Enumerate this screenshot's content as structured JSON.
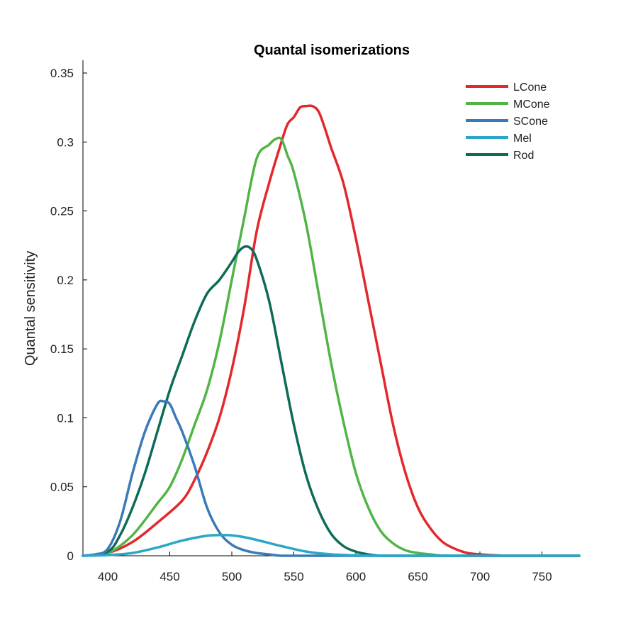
{
  "chart_data": {
    "type": "line",
    "title": "Quantal isomerizations",
    "xlabel": "",
    "ylabel": "Quantal sensitivity",
    "xlim": [
      380,
      780
    ],
    "ylim": [
      0,
      0.36
    ],
    "xticks": [
      400,
      450,
      500,
      550,
      600,
      650,
      700,
      750
    ],
    "xtick_labels": [
      "400",
      "450",
      "500",
      "550",
      "600",
      "650",
      "700",
      "750"
    ],
    "yticks": [
      0,
      0.05,
      0.1,
      0.15,
      0.2,
      0.25,
      0.3,
      0.35
    ],
    "ytick_labels": [
      "0",
      "0.05",
      "0.1",
      "0.15",
      "0.2",
      "0.25",
      "0.3",
      "0.35"
    ],
    "grid": false,
    "legend_position": "top-right",
    "series": [
      {
        "name": "LCone",
        "color": "#e3282c",
        "x": [
          380,
          400,
          420,
          440,
          460,
          470,
          480,
          490,
          500,
          510,
          520,
          530,
          540,
          545,
          550,
          555,
          560,
          565,
          570,
          575,
          580,
          590,
          600,
          610,
          620,
          630,
          640,
          650,
          660,
          670,
          680,
          690,
          700,
          720,
          740,
          760,
          780
        ],
        "values": [
          0.0,
          0.002,
          0.01,
          0.024,
          0.04,
          0.055,
          0.075,
          0.1,
          0.135,
          0.18,
          0.235,
          0.27,
          0.3,
          0.313,
          0.318,
          0.325,
          0.326,
          0.326,
          0.322,
          0.31,
          0.296,
          0.27,
          0.23,
          0.185,
          0.14,
          0.095,
          0.06,
          0.035,
          0.02,
          0.01,
          0.005,
          0.002,
          0.001,
          0.0,
          0.0,
          0.0,
          0.0
        ]
      },
      {
        "name": "MCone",
        "color": "#52b447",
        "x": [
          380,
          400,
          420,
          440,
          450,
          460,
          470,
          480,
          490,
          500,
          510,
          520,
          530,
          535,
          540,
          545,
          550,
          560,
          570,
          580,
          590,
          600,
          610,
          620,
          630,
          640,
          650,
          660,
          670,
          680,
          700,
          720,
          740,
          760,
          780
        ],
        "values": [
          0.0,
          0.002,
          0.015,
          0.038,
          0.05,
          0.07,
          0.095,
          0.12,
          0.155,
          0.2,
          0.245,
          0.288,
          0.298,
          0.302,
          0.302,
          0.29,
          0.278,
          0.24,
          0.19,
          0.14,
          0.097,
          0.06,
          0.035,
          0.018,
          0.009,
          0.004,
          0.002,
          0.001,
          0.0,
          0.0,
          0.0,
          0.0,
          0.0,
          0.0,
          0.0
        ]
      },
      {
        "name": "SCone",
        "color": "#3a7ab8",
        "x": [
          380,
          390,
          400,
          410,
          420,
          430,
          440,
          445,
          450,
          455,
          460,
          470,
          480,
          490,
          500,
          510,
          520,
          530,
          540,
          560,
          580,
          600,
          650,
          700,
          780
        ],
        "values": [
          0.0,
          0.001,
          0.005,
          0.025,
          0.06,
          0.09,
          0.11,
          0.112,
          0.11,
          0.1,
          0.09,
          0.065,
          0.035,
          0.017,
          0.008,
          0.004,
          0.002,
          0.001,
          0.0,
          0.0,
          0.0,
          0.0,
          0.0,
          0.0,
          0.0
        ]
      },
      {
        "name": "Mel",
        "color": "#2aa7c8",
        "x": [
          380,
          400,
          420,
          440,
          460,
          480,
          490,
          500,
          510,
          520,
          540,
          560,
          580,
          600,
          620,
          650,
          700,
          780
        ],
        "values": [
          0.0,
          0.0005,
          0.002,
          0.006,
          0.011,
          0.0145,
          0.015,
          0.0148,
          0.0135,
          0.0115,
          0.007,
          0.003,
          0.001,
          0.0003,
          0.0,
          0.0,
          0.0,
          0.0
        ]
      },
      {
        "name": "Rod",
        "color": "#0e6b58",
        "x": [
          380,
          400,
          410,
          420,
          430,
          440,
          450,
          460,
          470,
          480,
          490,
          500,
          505,
          510,
          515,
          520,
          530,
          540,
          550,
          560,
          570,
          580,
          590,
          600,
          610,
          620,
          630,
          650,
          680,
          700,
          780
        ],
        "values": [
          0.0,
          0.003,
          0.015,
          0.035,
          0.06,
          0.09,
          0.12,
          0.145,
          0.17,
          0.19,
          0.2,
          0.213,
          0.22,
          0.224,
          0.223,
          0.215,
          0.185,
          0.14,
          0.095,
          0.058,
          0.033,
          0.016,
          0.007,
          0.003,
          0.001,
          0.0,
          0.0,
          0.0,
          0.0,
          0.0,
          0.0
        ]
      }
    ]
  }
}
